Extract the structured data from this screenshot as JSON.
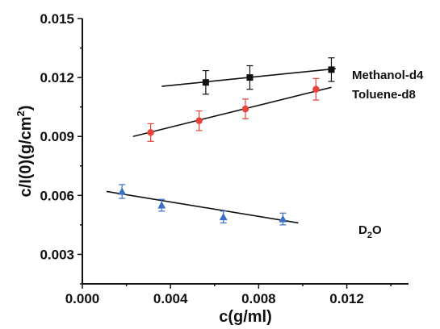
{
  "chart_data": {
    "type": "scatter",
    "xlabel": "c(g/ml)",
    "ylabel_main": "c/I(0)(g/cm",
    "ylabel_sup": "2",
    "ylabel_close": ")",
    "xlim": [
      0.0,
      0.0148
    ],
    "ylim": [
      0.0015,
      0.015
    ],
    "x_ticks": [
      {
        "value": 0.0,
        "label": "0.000"
      },
      {
        "value": 0.004,
        "label": "0.004"
      },
      {
        "value": 0.008,
        "label": "0.008"
      },
      {
        "value": 0.012,
        "label": "0.012"
      }
    ],
    "y_ticks": [
      {
        "value": 0.003,
        "label": "0.003"
      },
      {
        "value": 0.006,
        "label": "0.006"
      },
      {
        "value": 0.009,
        "label": "0.009"
      },
      {
        "value": 0.012,
        "label": "0.012"
      },
      {
        "value": 0.015,
        "label": "0.015"
      }
    ],
    "series": [
      {
        "name": "Methanol-d4",
        "marker": "square",
        "color": "#111111",
        "points": [
          {
            "x": 0.0056,
            "y": 0.01175,
            "err": 0.0006
          },
          {
            "x": 0.0076,
            "y": 0.012,
            "err": 0.0006
          },
          {
            "x": 0.0113,
            "y": 0.0124,
            "err": 0.0006
          }
        ],
        "fit": [
          [
            0.0036,
            0.01155
          ],
          [
            0.0115,
            0.01245
          ]
        ]
      },
      {
        "name": "Toluene-d8",
        "marker": "circle",
        "color": "#e8423a",
        "points": [
          {
            "x": 0.0031,
            "y": 0.0092,
            "err": 0.00045
          },
          {
            "x": 0.0053,
            "y": 0.0098,
            "err": 0.0005
          },
          {
            "x": 0.0074,
            "y": 0.0104,
            "err": 0.0005
          },
          {
            "x": 0.0106,
            "y": 0.0114,
            "err": 0.00055
          }
        ],
        "fit": [
          [
            0.0023,
            0.009
          ],
          [
            0.0113,
            0.0115
          ]
        ]
      },
      {
        "name_main": "D",
        "name_sub": "2",
        "name_tail": "O",
        "marker": "triangle",
        "color": "#3a6fc4",
        "points": [
          {
            "x": 0.0018,
            "y": 0.0062,
            "err": 0.00035
          },
          {
            "x": 0.0036,
            "y": 0.0055,
            "err": 0.0003
          },
          {
            "x": 0.0064,
            "y": 0.0049,
            "err": 0.0003
          },
          {
            "x": 0.0091,
            "y": 0.0048,
            "err": 0.0003
          }
        ],
        "fit": [
          [
            0.0011,
            0.0062
          ],
          [
            0.0098,
            0.0046
          ]
        ]
      }
    ]
  }
}
